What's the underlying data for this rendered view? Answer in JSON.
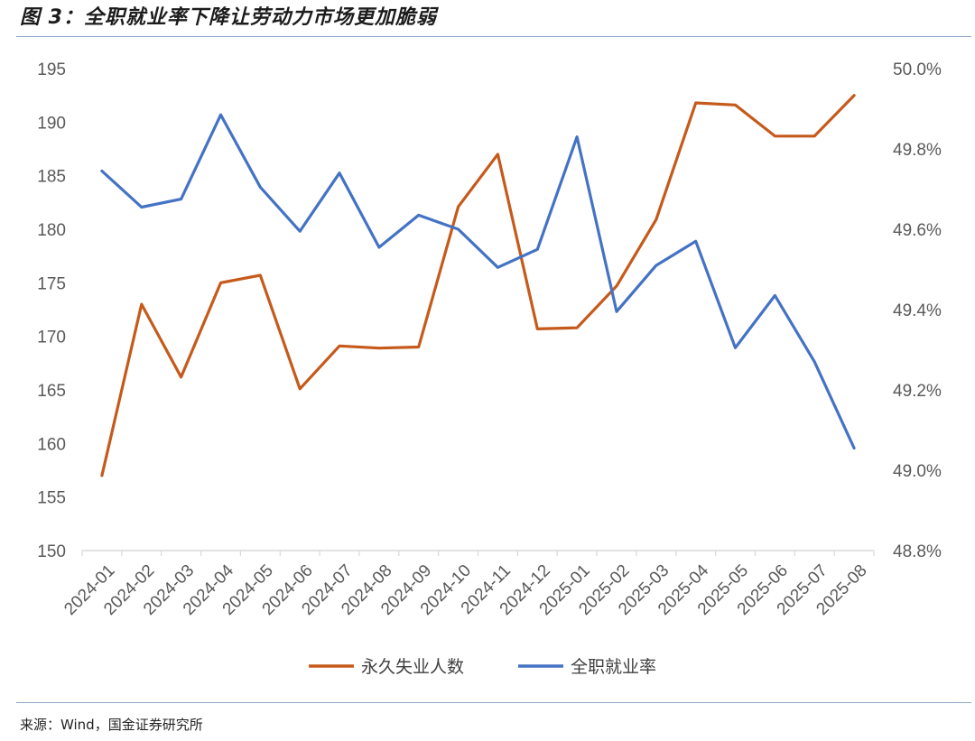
{
  "figure_title": "图 3：全职就业率下降让劳动力市场更加脆弱",
  "source_note": "来源：Wind，国金证券研究所",
  "colors": {
    "unemployed": "#c55a1b",
    "fulltime": "#4472c4",
    "axis": "#d9d9d9",
    "rule": "#8fa7c4"
  },
  "chart_data": {
    "type": "line",
    "title": "",
    "xlabel": "",
    "ylabel_left": "",
    "ylabel_right": "",
    "grid": false,
    "legend": "bottom",
    "categories": [
      "2024-01",
      "2024-02",
      "2024-03",
      "2024-04",
      "2024-05",
      "2024-06",
      "2024-07",
      "2024-08",
      "2024-09",
      "2024-10",
      "2024-11",
      "2024-12",
      "2025-01",
      "2025-02",
      "2025-03",
      "2025-04",
      "2025-05",
      "2025-06",
      "2025-07",
      "2025-08"
    ],
    "left_axis": {
      "min": 150,
      "max": 195,
      "step": 5,
      "tick_labels": [
        "150",
        "155",
        "160",
        "165",
        "170",
        "175",
        "180",
        "185",
        "190",
        "195"
      ]
    },
    "right_axis": {
      "min": 48.8,
      "max": 50.0,
      "step": 0.2,
      "tick_labels": [
        "48.8%",
        "49.0%",
        "49.2%",
        "49.4%",
        "49.6%",
        "49.8%",
        "50.0%"
      ]
    },
    "series": [
      {
        "name": "永久失业人数",
        "axis": "left",
        "color": "#c55a1b",
        "values": [
          157.0,
          173.0,
          166.2,
          175.0,
          175.7,
          165.1,
          169.1,
          168.9,
          169.0,
          182.1,
          187.0,
          170.7,
          170.8,
          174.7,
          180.9,
          191.8,
          191.6,
          188.7,
          188.7,
          192.5
        ]
      },
      {
        "name": "全职就业率",
        "axis": "right",
        "color": "#4472c4",
        "values": [
          49.745,
          49.655,
          49.675,
          49.885,
          49.705,
          49.595,
          49.74,
          49.555,
          49.635,
          49.6,
          49.505,
          49.55,
          49.83,
          49.395,
          49.51,
          49.57,
          49.305,
          49.435,
          49.27,
          49.055
        ]
      }
    ]
  }
}
